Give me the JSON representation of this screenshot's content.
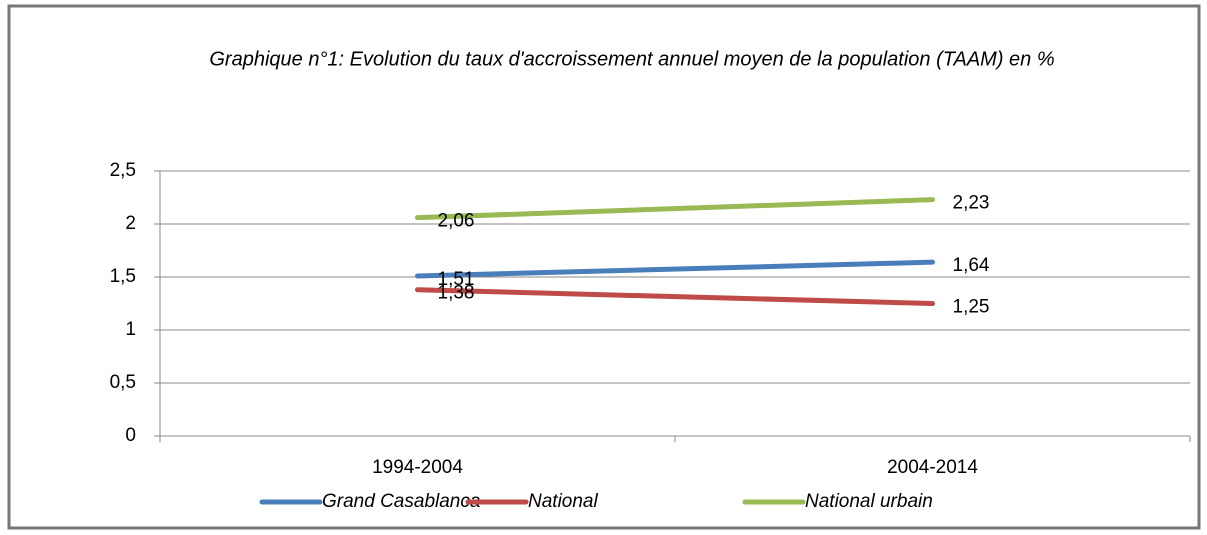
{
  "chart_data": {
    "type": "line",
    "title": "Graphique n°1:  Evolution du taux d'accroissement annuel moyen de la population (TAAM) en %",
    "categories": [
      "1994-2004",
      "2004-2014"
    ],
    "series": [
      {
        "name": "Grand Casablanca",
        "color": "#4a7ebb",
        "values": [
          1.51,
          1.64
        ],
        "value_labels": [
          "1,51",
          "1,64"
        ]
      },
      {
        "name": "National",
        "color": "#be4b48",
        "values": [
          1.38,
          1.25
        ],
        "value_labels": [
          "1,38",
          "1,25"
        ]
      },
      {
        "name": "National urbain",
        "color": "#98b954",
        "values": [
          2.06,
          2.23
        ],
        "value_labels": [
          "2,06",
          "2,23"
        ]
      }
    ],
    "ylim": [
      0,
      2.5
    ],
    "yticks": [
      0,
      {
        "value": 0.5,
        "label": "0,5"
      },
      1,
      {
        "value": 1.5,
        "label": "1,5"
      },
      2,
      {
        "value": 2.5,
        "label": "2,5"
      }
    ],
    "grid": true,
    "legend": "bottom"
  }
}
